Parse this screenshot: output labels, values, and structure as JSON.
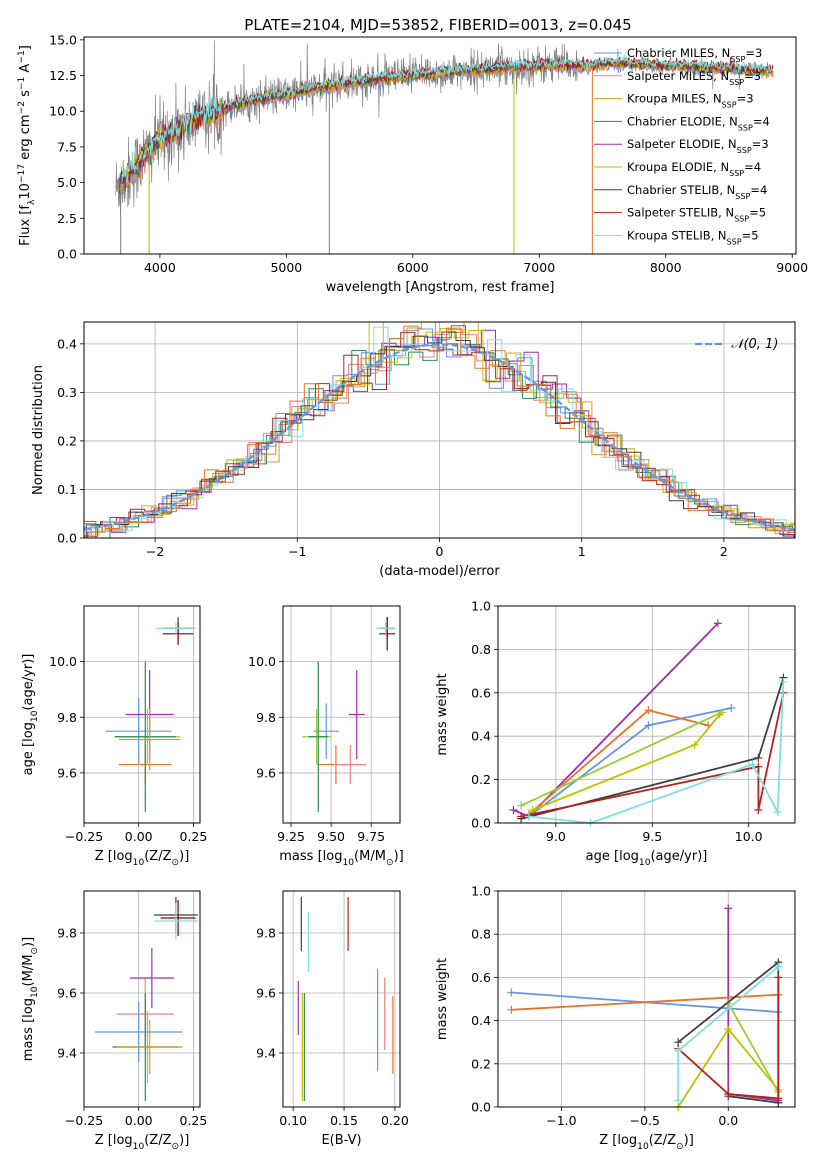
{
  "title": "PLATE=2104, MJD=53852, FIBERID=0013, z=0.045",
  "colors": [
    "#4c72b0",
    "#6495ed",
    "#e8732a",
    "#a02fa8",
    "#9acd32",
    "#f08080",
    "#d4a017",
    "#8b0000",
    "#404040",
    "#2e8b57",
    "#ff69b4",
    "#c0c000",
    "#b22222",
    "#80dfe0"
  ],
  "chart_data": [
    {
      "id": "spectrum",
      "type": "line",
      "xlabel": "wavelength [Angstrom, rest frame]",
      "ylabel": "Flux [f_λ10^-17 erg cm^-2 s^-1 A^-1]",
      "xlim": [
        3400,
        9030
      ],
      "ylim": [
        0,
        15.2
      ],
      "xticks": [
        4000,
        5000,
        6000,
        7000,
        8000,
        9000
      ],
      "yticks": [
        0.0,
        2.5,
        5.0,
        7.5,
        10.0,
        12.5,
        15.0
      ],
      "legend_position": "top-right",
      "legend": [
        {
          "label": "Chabrier MILES, N_SSP=3",
          "color": "#6495ed"
        },
        {
          "label": "Salpeter MILES, N_SSP=3",
          "color": "#f08080"
        },
        {
          "label": "Kroupa MILES, N_SSP=3",
          "color": "#d4a017"
        },
        {
          "label": "Chabrier ELODIE, N_SSP=4",
          "color": "#2e8b57"
        },
        {
          "label": "Salpeter ELODIE, N_SSP=3",
          "color": "#a02fa8"
        },
        {
          "label": "Kroupa ELODIE, N_SSP=4",
          "color": "#c0c000"
        },
        {
          "label": "Chabrier STELIB, N_SSP=4",
          "color": "#404040"
        },
        {
          "label": "Salpeter STELIB, N_SSP=5",
          "color": "#b22222"
        },
        {
          "label": "Kroupa STELIB, N_SSP=5",
          "color": "#80dfe0"
        }
      ],
      "data_envelope": {
        "x": [
          3650,
          3800,
          4000,
          4300,
          4600,
          5000,
          5500,
          6000,
          6500,
          7000,
          7400,
          7600,
          8000,
          8500,
          8850
        ],
        "y": [
          4.5,
          6.0,
          8.0,
          9.5,
          10.5,
          11.2,
          12.0,
          12.5,
          12.9,
          13.2,
          13.2,
          13.4,
          13.2,
          13.0,
          12.8
        ]
      }
    },
    {
      "id": "residuals",
      "type": "histogram",
      "xlabel": "(data-model)/error",
      "ylabel": "Normed distribution",
      "xlim": [
        -2.5,
        2.5
      ],
      "ylim": [
        0,
        0.445
      ],
      "xticks": [
        -2,
        -1,
        0,
        1,
        2
      ],
      "yticks": [
        0.0,
        0.1,
        0.2,
        0.3,
        0.4
      ],
      "legend_position": "top-right",
      "legend": [
        {
          "label": "N(0,1)",
          "color": "#6495ed"
        }
      ]
    },
    {
      "id": "age_vs_Z",
      "type": "errorbar",
      "xlabel": "Z [log10(Z/Z⊙)]",
      "ylabel": "age [log10(age/yr)]",
      "xlim": [
        -0.25,
        0.28
      ],
      "ylim": [
        9.42,
        10.2
      ],
      "xticks": [
        -0.25,
        0.0,
        0.25
      ],
      "yticks": [
        9.6,
        9.8,
        10.0
      ],
      "points": [
        {
          "x": 0.0,
          "y": 9.75,
          "xerr": 0.15,
          "yerr": 0.12,
          "color": "#6495ed"
        },
        {
          "x": 0.03,
          "y": 9.63,
          "xerr": 0.12,
          "yerr": 0.07,
          "color": "#e8732a"
        },
        {
          "x": 0.05,
          "y": 9.81,
          "xerr": 0.11,
          "yerr": 0.16,
          "color": "#a02fa8"
        },
        {
          "x": 0.04,
          "y": 9.73,
          "xerr": 0.15,
          "yerr": 0.1,
          "color": "#9acd32"
        },
        {
          "x": 0.03,
          "y": 9.73,
          "xerr": 0.14,
          "yerr": 0.27,
          "color": "#2e8b57"
        },
        {
          "x": 0.05,
          "y": 9.72,
          "xerr": 0.14,
          "yerr": 0.11,
          "color": "#d4a017"
        },
        {
          "x": 0.18,
          "y": 10.12,
          "xerr": 0.07,
          "yerr": 0.04,
          "color": "#404040"
        },
        {
          "x": 0.18,
          "y": 10.1,
          "xerr": 0.07,
          "yerr": 0.04,
          "color": "#8b0000"
        },
        {
          "x": 0.17,
          "y": 10.12,
          "xerr": 0.09,
          "yerr": 0.02,
          "color": "#80dfe0"
        }
      ]
    },
    {
      "id": "age_vs_mass",
      "type": "errorbar",
      "xlabel": "mass [log10(M/M⊙)]",
      "ylabel": "",
      "xlim": [
        9.2,
        9.93
      ],
      "ylim": [
        9.42,
        10.2
      ],
      "xticks": [
        9.25,
        9.5,
        9.75
      ],
      "yticks": [
        9.6,
        9.8,
        10.0
      ],
      "points": [
        {
          "x": 9.47,
          "y": 9.75,
          "xerr": 0.08,
          "yerr": 0.1,
          "color": "#6495ed"
        },
        {
          "x": 9.53,
          "y": 9.63,
          "xerr": 0.11,
          "yerr": 0.07,
          "color": "#e8732a"
        },
        {
          "x": 9.66,
          "y": 9.81,
          "xerr": 0.05,
          "yerr": 0.16,
          "color": "#a02fa8"
        },
        {
          "x": 9.41,
          "y": 9.73,
          "xerr": 0.09,
          "yerr": 0.1,
          "color": "#9acd32"
        },
        {
          "x": 9.42,
          "y": 9.73,
          "xerr": 0.06,
          "yerr": 0.27,
          "color": "#2e8b57"
        },
        {
          "x": 9.62,
          "y": 9.63,
          "xerr": 0.1,
          "yerr": 0.07,
          "color": "#f08080"
        },
        {
          "x": 9.85,
          "y": 10.12,
          "xerr": 0.05,
          "yerr": 0.04,
          "color": "#404040"
        },
        {
          "x": 9.85,
          "y": 10.1,
          "xerr": 0.05,
          "yerr": 0.06,
          "color": "#8b0000"
        },
        {
          "x": 9.84,
          "y": 10.12,
          "xerr": 0.06,
          "yerr": 0.02,
          "color": "#80dfe0"
        }
      ]
    },
    {
      "id": "weight_vs_age",
      "type": "line",
      "xlabel": "age [log10(age/yr)]",
      "ylabel": "mass weight",
      "xlim": [
        8.7,
        10.24
      ],
      "ylim": [
        0,
        1
      ],
      "xticks": [
        9.0,
        9.5,
        10.0
      ],
      "yticks": [
        0.0,
        0.2,
        0.4,
        0.6,
        0.8,
        1.0
      ],
      "series": [
        {
          "color": "#a02fa8",
          "x": [
            8.78,
            8.86,
            9.84
          ],
          "y": [
            0.06,
            0.03,
            0.92
          ]
        },
        {
          "color": "#6495ed",
          "x": [
            8.86,
            9.48,
            9.91
          ],
          "y": [
            0.03,
            0.45,
            0.53
          ]
        },
        {
          "color": "#e8732a",
          "x": [
            8.86,
            9.48,
            9.79
          ],
          "y": [
            0.04,
            0.52,
            0.45
          ]
        },
        {
          "color": "#9acd32",
          "x": [
            8.82,
            9.86
          ],
          "y": [
            0.08,
            0.51
          ]
        },
        {
          "color": "#c0c000",
          "x": [
            8.88,
            9.72,
            9.85
          ],
          "y": [
            0.06,
            0.36,
            0.5
          ]
        },
        {
          "color": "#404040",
          "x": [
            8.82,
            10.05,
            10.18
          ],
          "y": [
            0.02,
            0.3,
            0.67
          ]
        },
        {
          "color": "#b22222",
          "x": [
            8.82,
            10.05,
            10.05,
            10.18
          ],
          "y": [
            0.03,
            0.26,
            0.06,
            0.6
          ]
        },
        {
          "color": "#80dfe0",
          "x": [
            8.86,
            9.18,
            10.02,
            10.15,
            10.18
          ],
          "y": [
            0.03,
            0.0,
            0.27,
            0.05,
            0.65
          ]
        }
      ]
    },
    {
      "id": "mass_vs_Z",
      "type": "errorbar",
      "xlabel": "Z [log10(Z/Z⊙)]",
      "ylabel": "mass [log10(M/M⊙)]",
      "xlim": [
        -0.25,
        0.28
      ],
      "ylim": [
        9.22,
        9.94
      ],
      "xticks": [
        -0.25,
        0.0,
        0.25
      ],
      "yticks": [
        9.4,
        9.6,
        9.8
      ],
      "points": [
        {
          "x": 0.0,
          "y": 9.47,
          "xerr": 0.2,
          "yerr": 0.1,
          "color": "#6495ed"
        },
        {
          "x": 0.03,
          "y": 9.53,
          "xerr": 0.13,
          "yerr": 0.12,
          "color": "#f08080"
        },
        {
          "x": 0.06,
          "y": 9.65,
          "xerr": 0.1,
          "yerr": 0.1,
          "color": "#a02fa8"
        },
        {
          "x": 0.04,
          "y": 9.42,
          "xerr": 0.16,
          "yerr": 0.12,
          "color": "#9acd32"
        },
        {
          "x": 0.03,
          "y": 9.42,
          "xerr": 0.15,
          "yerr": 0.18,
          "color": "#2e8b57"
        },
        {
          "x": 0.05,
          "y": 9.42,
          "xerr": 0.15,
          "yerr": 0.09,
          "color": "#d4a017"
        },
        {
          "x": 0.17,
          "y": 9.86,
          "xerr": 0.1,
          "yerr": 0.06,
          "color": "#404040"
        },
        {
          "x": 0.18,
          "y": 9.85,
          "xerr": 0.08,
          "yerr": 0.06,
          "color": "#8b0000"
        },
        {
          "x": 0.17,
          "y": 9.84,
          "xerr": 0.1,
          "yerr": 0.06,
          "color": "#80dfe0"
        }
      ]
    },
    {
      "id": "mass_vs_ebv",
      "type": "errorbar",
      "xlabel": "E(B-V)",
      "ylabel": "",
      "xlim": [
        0.09,
        0.205
      ],
      "ylim": [
        9.22,
        9.94
      ],
      "xticks": [
        0.1,
        0.15,
        0.2
      ],
      "yticks": [
        9.4,
        9.6,
        9.8
      ],
      "points": [
        {
          "x": 0.105,
          "y": 9.55,
          "xerr": 0,
          "yerr": 0.09,
          "color": "#a02fa8"
        },
        {
          "x": 0.108,
          "y": 9.83,
          "xerr": 0,
          "yerr": 0.09,
          "color": "#404040"
        },
        {
          "x": 0.109,
          "y": 9.42,
          "xerr": 0,
          "yerr": 0.18,
          "color": "#c0c000"
        },
        {
          "x": 0.111,
          "y": 9.42,
          "xerr": 0,
          "yerr": 0.18,
          "color": "#2e8b57"
        },
        {
          "x": 0.115,
          "y": 9.77,
          "xerr": 0,
          "yerr": 0.1,
          "color": "#80dfe0"
        },
        {
          "x": 0.154,
          "y": 9.83,
          "xerr": 0,
          "yerr": 0.09,
          "color": "#b22222"
        },
        {
          "x": 0.183,
          "y": 9.51,
          "xerr": 0,
          "yerr": 0.17,
          "color": "#6495ed"
        },
        {
          "x": 0.19,
          "y": 9.53,
          "xerr": 0,
          "yerr": 0.12,
          "color": "#f08080"
        },
        {
          "x": 0.198,
          "y": 9.46,
          "xerr": 0,
          "yerr": 0.13,
          "color": "#e8732a"
        }
      ]
    },
    {
      "id": "weight_vs_Z",
      "type": "line",
      "xlabel": "Z [log10(Z/Z⊙)]",
      "ylabel": "mass weight",
      "xlim": [
        -1.38,
        0.4
      ],
      "ylim": [
        0,
        1
      ],
      "xticks": [
        -1.0,
        -0.5,
        0.0
      ],
      "yticks": [
        0.0,
        0.2,
        0.4,
        0.6,
        0.8,
        1.0
      ],
      "series": [
        {
          "color": "#a02fa8",
          "x": [
            0.0,
            0.0,
            0.3
          ],
          "y": [
            0.92,
            0.06,
            0.03
          ]
        },
        {
          "color": "#6495ed",
          "x": [
            -1.3,
            0.3
          ],
          "y": [
            0.53,
            0.44
          ]
        },
        {
          "color": "#e8732a",
          "x": [
            -1.3,
            0.3
          ],
          "y": [
            0.45,
            0.52
          ]
        },
        {
          "color": "#9acd32",
          "x": [
            0.0,
            0.3
          ],
          "y": [
            0.48,
            0.07
          ]
        },
        {
          "color": "#c0c000",
          "x": [
            -0.3,
            0.0,
            0.3
          ],
          "y": [
            0.0,
            0.36,
            0.08
          ]
        },
        {
          "color": "#404040",
          "x": [
            -0.3,
            0.3,
            0.3,
            0.0,
            0.3
          ],
          "y": [
            0.3,
            0.67,
            0.02,
            0.05,
            0.02
          ]
        },
        {
          "color": "#b22222",
          "x": [
            -0.3,
            0.0,
            0.3,
            0.3
          ],
          "y": [
            0.27,
            0.06,
            0.04,
            0.6
          ]
        },
        {
          "color": "#80dfe0",
          "x": [
            -0.3,
            -0.3,
            0.3
          ],
          "y": [
            0.03,
            0.26,
            0.65
          ]
        }
      ]
    }
  ]
}
